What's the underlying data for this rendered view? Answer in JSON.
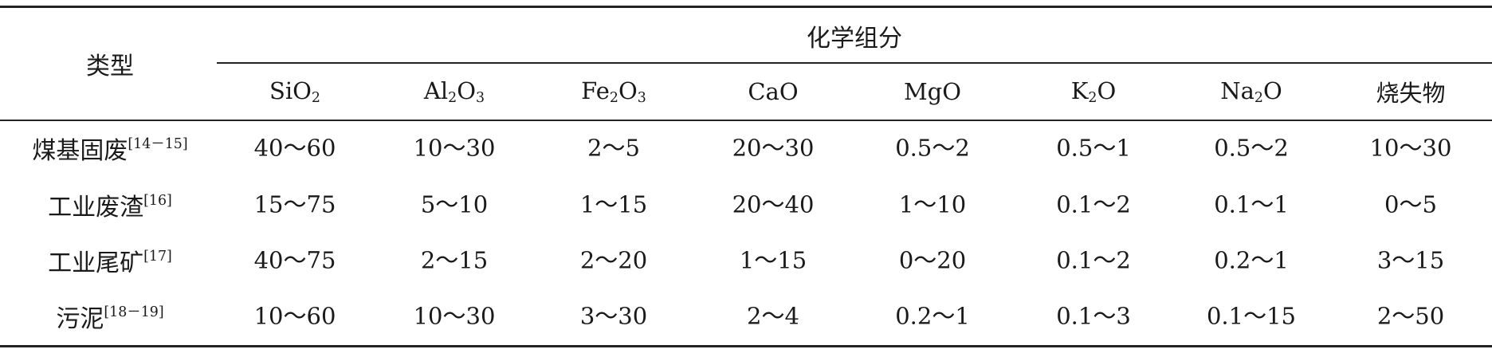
{
  "table": {
    "row_header": "类型",
    "group_header": "化学组分",
    "columns": [
      {
        "base": "SiO",
        "sub": "2",
        "tail": ""
      },
      {
        "base": "Al",
        "sub": "2",
        "tail": "O",
        "sub2": "3"
      },
      {
        "base": "Fe",
        "sub": "2",
        "tail": "O",
        "sub2": "3"
      },
      {
        "base": "CaO",
        "sub": "",
        "tail": ""
      },
      {
        "base": "MgO",
        "sub": "",
        "tail": ""
      },
      {
        "base": "K",
        "sub": "2",
        "tail": "O"
      },
      {
        "base": "Na",
        "sub": "2",
        "tail": "O"
      },
      {
        "base": "烧失物",
        "sub": "",
        "tail": ""
      }
    ],
    "rows": [
      {
        "label": "煤基固废",
        "ref": "[14－15]",
        "cells": [
          "40～60",
          "10～30",
          "2～5",
          "20～30",
          "0.5～2",
          "0.5～1",
          "0.5～2",
          "10～30"
        ]
      },
      {
        "label": "工业废渣",
        "ref": "[16]",
        "cells": [
          "15～75",
          "5～10",
          "1～15",
          "20～40",
          "1～10",
          "0.1～2",
          "0.1～1",
          "0～5"
        ]
      },
      {
        "label": "工业尾矿",
        "ref": "[17]",
        "cells": [
          "40～75",
          "2～15",
          "2～20",
          "1～15",
          "0～20",
          "0.1～2",
          "0.2～1",
          "3～15"
        ]
      },
      {
        "label": "污泥",
        "ref": "[18－19]",
        "cells": [
          "10～60",
          "10～30",
          "3～30",
          "2～4",
          "0.2～1",
          "0.1～3",
          "0.1～15",
          "2～50"
        ]
      }
    ]
  }
}
